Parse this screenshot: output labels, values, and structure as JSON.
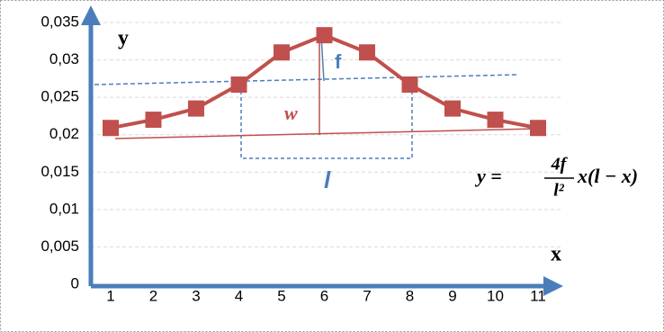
{
  "chart_data": {
    "type": "line",
    "categories": [
      "1",
      "2",
      "3",
      "4",
      "5",
      "6",
      "7",
      "8",
      "9",
      "10",
      "11"
    ],
    "series": [
      {
        "color": "#c0504d",
        "values": [
          0.0209,
          0.022,
          0.0235,
          0.0267,
          0.031,
          0.0333,
          0.031,
          0.0267,
          0.0235,
          0.022,
          0.0209
        ]
      }
    ],
    "ylim": [
      0,
      0.035
    ],
    "yticks": [
      0,
      {
        "value": 0.005,
        "label": "0,005"
      },
      {
        "value": 0.01,
        "label": "0,01"
      },
      {
        "value": 0.015,
        "label": "0,015"
      },
      {
        "value": 0.02,
        "label": "0,02"
      },
      {
        "value": 0.025,
        "label": "0,025"
      },
      {
        "value": 0.03,
        "label": "0,03"
      },
      {
        "value": 0.035,
        "label": "0,035"
      }
    ],
    "grid": true,
    "annotations": {
      "y_axis": "y",
      "x_axis": "x",
      "f": "f",
      "w": "w",
      "l": "l"
    },
    "formula": {
      "lhs": "y =",
      "numerator": "4f",
      "denominator": "l²",
      "rhs": "x(l − x)"
    }
  }
}
